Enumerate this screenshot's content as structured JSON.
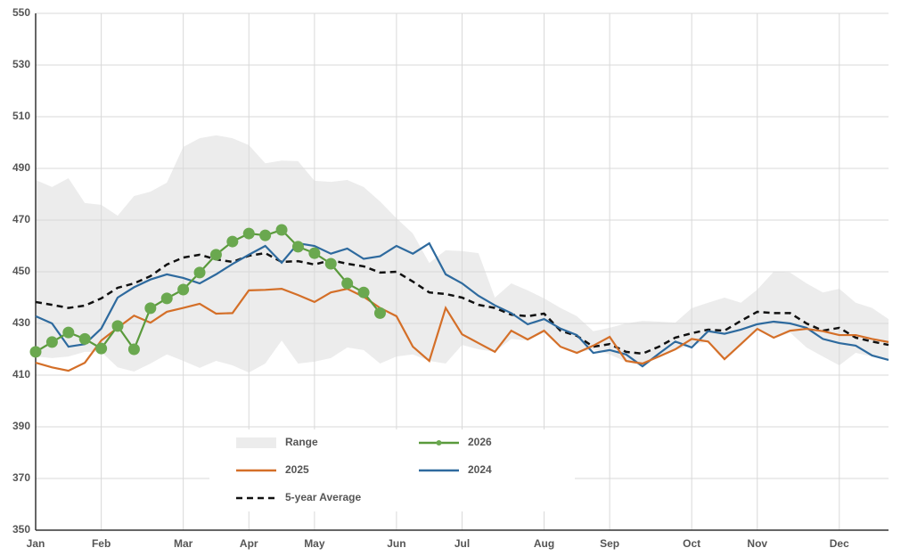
{
  "chart_data": {
    "type": "line",
    "categories": [
      "Jan",
      null,
      null,
      null,
      "Feb",
      null,
      null,
      null,
      null,
      "Mar",
      null,
      null,
      null,
      "Apr",
      null,
      null,
      null,
      "May",
      null,
      null,
      null,
      null,
      "Jun",
      null,
      null,
      null,
      "Jul",
      null,
      null,
      null,
      null,
      "Aug",
      null,
      null,
      null,
      "Sep",
      null,
      null,
      null,
      null,
      "Oct",
      null,
      null,
      null,
      "Nov",
      null,
      null,
      null,
      null,
      "Dec",
      null,
      null,
      null
    ],
    "ylim": [
      350,
      550
    ],
    "yticks": [
      350,
      370,
      390,
      410,
      430,
      450,
      470,
      490,
      510,
      530,
      550
    ],
    "grid": true,
    "series": [
      {
        "name": "Range",
        "color": "#ececec",
        "high": [
          485.5,
          482.8,
          486.2,
          476.6,
          475.9,
          471.7,
          479.3,
          481,
          484.5,
          498.3,
          501.7,
          502.8,
          501.7,
          499,
          492,
          493,
          492.8,
          485.2,
          484.8,
          485.5,
          482.8,
          477.2,
          470.7,
          464.8,
          453.4,
          458.3,
          458,
          457.2,
          440,
          445.5,
          442.8,
          439.7,
          436,
          432.8,
          427,
          428.3,
          430,
          431,
          430.7,
          430.3,
          435.9,
          438,
          440,
          438,
          443.1,
          450,
          449.7,
          445.5,
          442,
          443.4,
          438,
          436,
          431.7
        ],
        "low": [
          417.2,
          416.6,
          417.2,
          419,
          419,
          413,
          411.4,
          414.5,
          418,
          415.5,
          412.8,
          415.5,
          413.8,
          411,
          414.5,
          423.4,
          414.5,
          415.2,
          416.6,
          420.7,
          419.7,
          414.5,
          417.2,
          418,
          415.5,
          414.5,
          421.7,
          420,
          419,
          424,
          423.4,
          426.5,
          420.7,
          418.6,
          420,
          418,
          415.2,
          413.8,
          417.2,
          419.7,
          421.7,
          423,
          416.2,
          421.7,
          427.6,
          424,
          426.5,
          420.7,
          417.2,
          413.8,
          418.6,
          417.2,
          415.5
        ]
      },
      {
        "name": "2026",
        "color": "#5a9a3c",
        "marker": "#6aa84f",
        "values": [
          419,
          422.8,
          426.5,
          424,
          420.3,
          429,
          420,
          435.9,
          439.7,
          443.1,
          449.7,
          456.6,
          461.7,
          464.8,
          464.1,
          466.2,
          459.7,
          457.2,
          453.1,
          445.5,
          442,
          434,
          null,
          null,
          null,
          null,
          null,
          null,
          null,
          null,
          null,
          null,
          null,
          null,
          null,
          null,
          null,
          null,
          null,
          null,
          null,
          null,
          null,
          null,
          null,
          null,
          null,
          null,
          null,
          null,
          null,
          null,
          null
        ]
      },
      {
        "name": "2025",
        "color": "#d46f28",
        "values": [
          414.8,
          413,
          411.7,
          414.8,
          423.4,
          428.3,
          433,
          430.3,
          434.5,
          436,
          437.6,
          433.8,
          434,
          442.8,
          443,
          443.4,
          441,
          438.3,
          442,
          443.4,
          440.3,
          436,
          432.8,
          421,
          415.5,
          436,
          425.8,
          422.4,
          419,
          427.2,
          423.8,
          427.2,
          421,
          418.6,
          421.4,
          424.8,
          415.5,
          414.5,
          417.2,
          420,
          424,
          423,
          416.2,
          422,
          427.9,
          424.5,
          427.2,
          427.9,
          427,
          425.5,
          425.5,
          424,
          422.8
        ]
      },
      {
        "name": "2024",
        "color": "#2e6a9e",
        "values": [
          432.8,
          430,
          421,
          422,
          428,
          440,
          444,
          447,
          449,
          447.6,
          445.5,
          449,
          453,
          456.6,
          460,
          453.5,
          461,
          460,
          457,
          459,
          455,
          456,
          460,
          457,
          461,
          449,
          445.5,
          440.7,
          437,
          434,
          429.7,
          431.7,
          428,
          425.5,
          418.6,
          419.7,
          418,
          413.4,
          418.3,
          423,
          420.7,
          427,
          426,
          427.6,
          429.7,
          430.7,
          430,
          428.3,
          424,
          422.4,
          421.4,
          417.6,
          415.9
        ]
      },
      {
        "name": "5-year Average",
        "color": "#111111",
        "dashed": true,
        "values": [
          438.3,
          437.2,
          436,
          436.9,
          439.7,
          443.8,
          445.5,
          448.3,
          452.8,
          455.5,
          456.6,
          454.8,
          453.8,
          456.2,
          457.2,
          453.8,
          454.1,
          452.8,
          454.5,
          453.1,
          452.1,
          449.7,
          450,
          446.2,
          442,
          441.4,
          440,
          437.2,
          436,
          433.4,
          432.8,
          433.8,
          427.2,
          425.2,
          421,
          422,
          419,
          418.3,
          421,
          424.5,
          426.2,
          427.6,
          427.2,
          431,
          434.5,
          434,
          434,
          430,
          427.2,
          428.3,
          424.5,
          423,
          421.7
        ]
      }
    ]
  }
}
